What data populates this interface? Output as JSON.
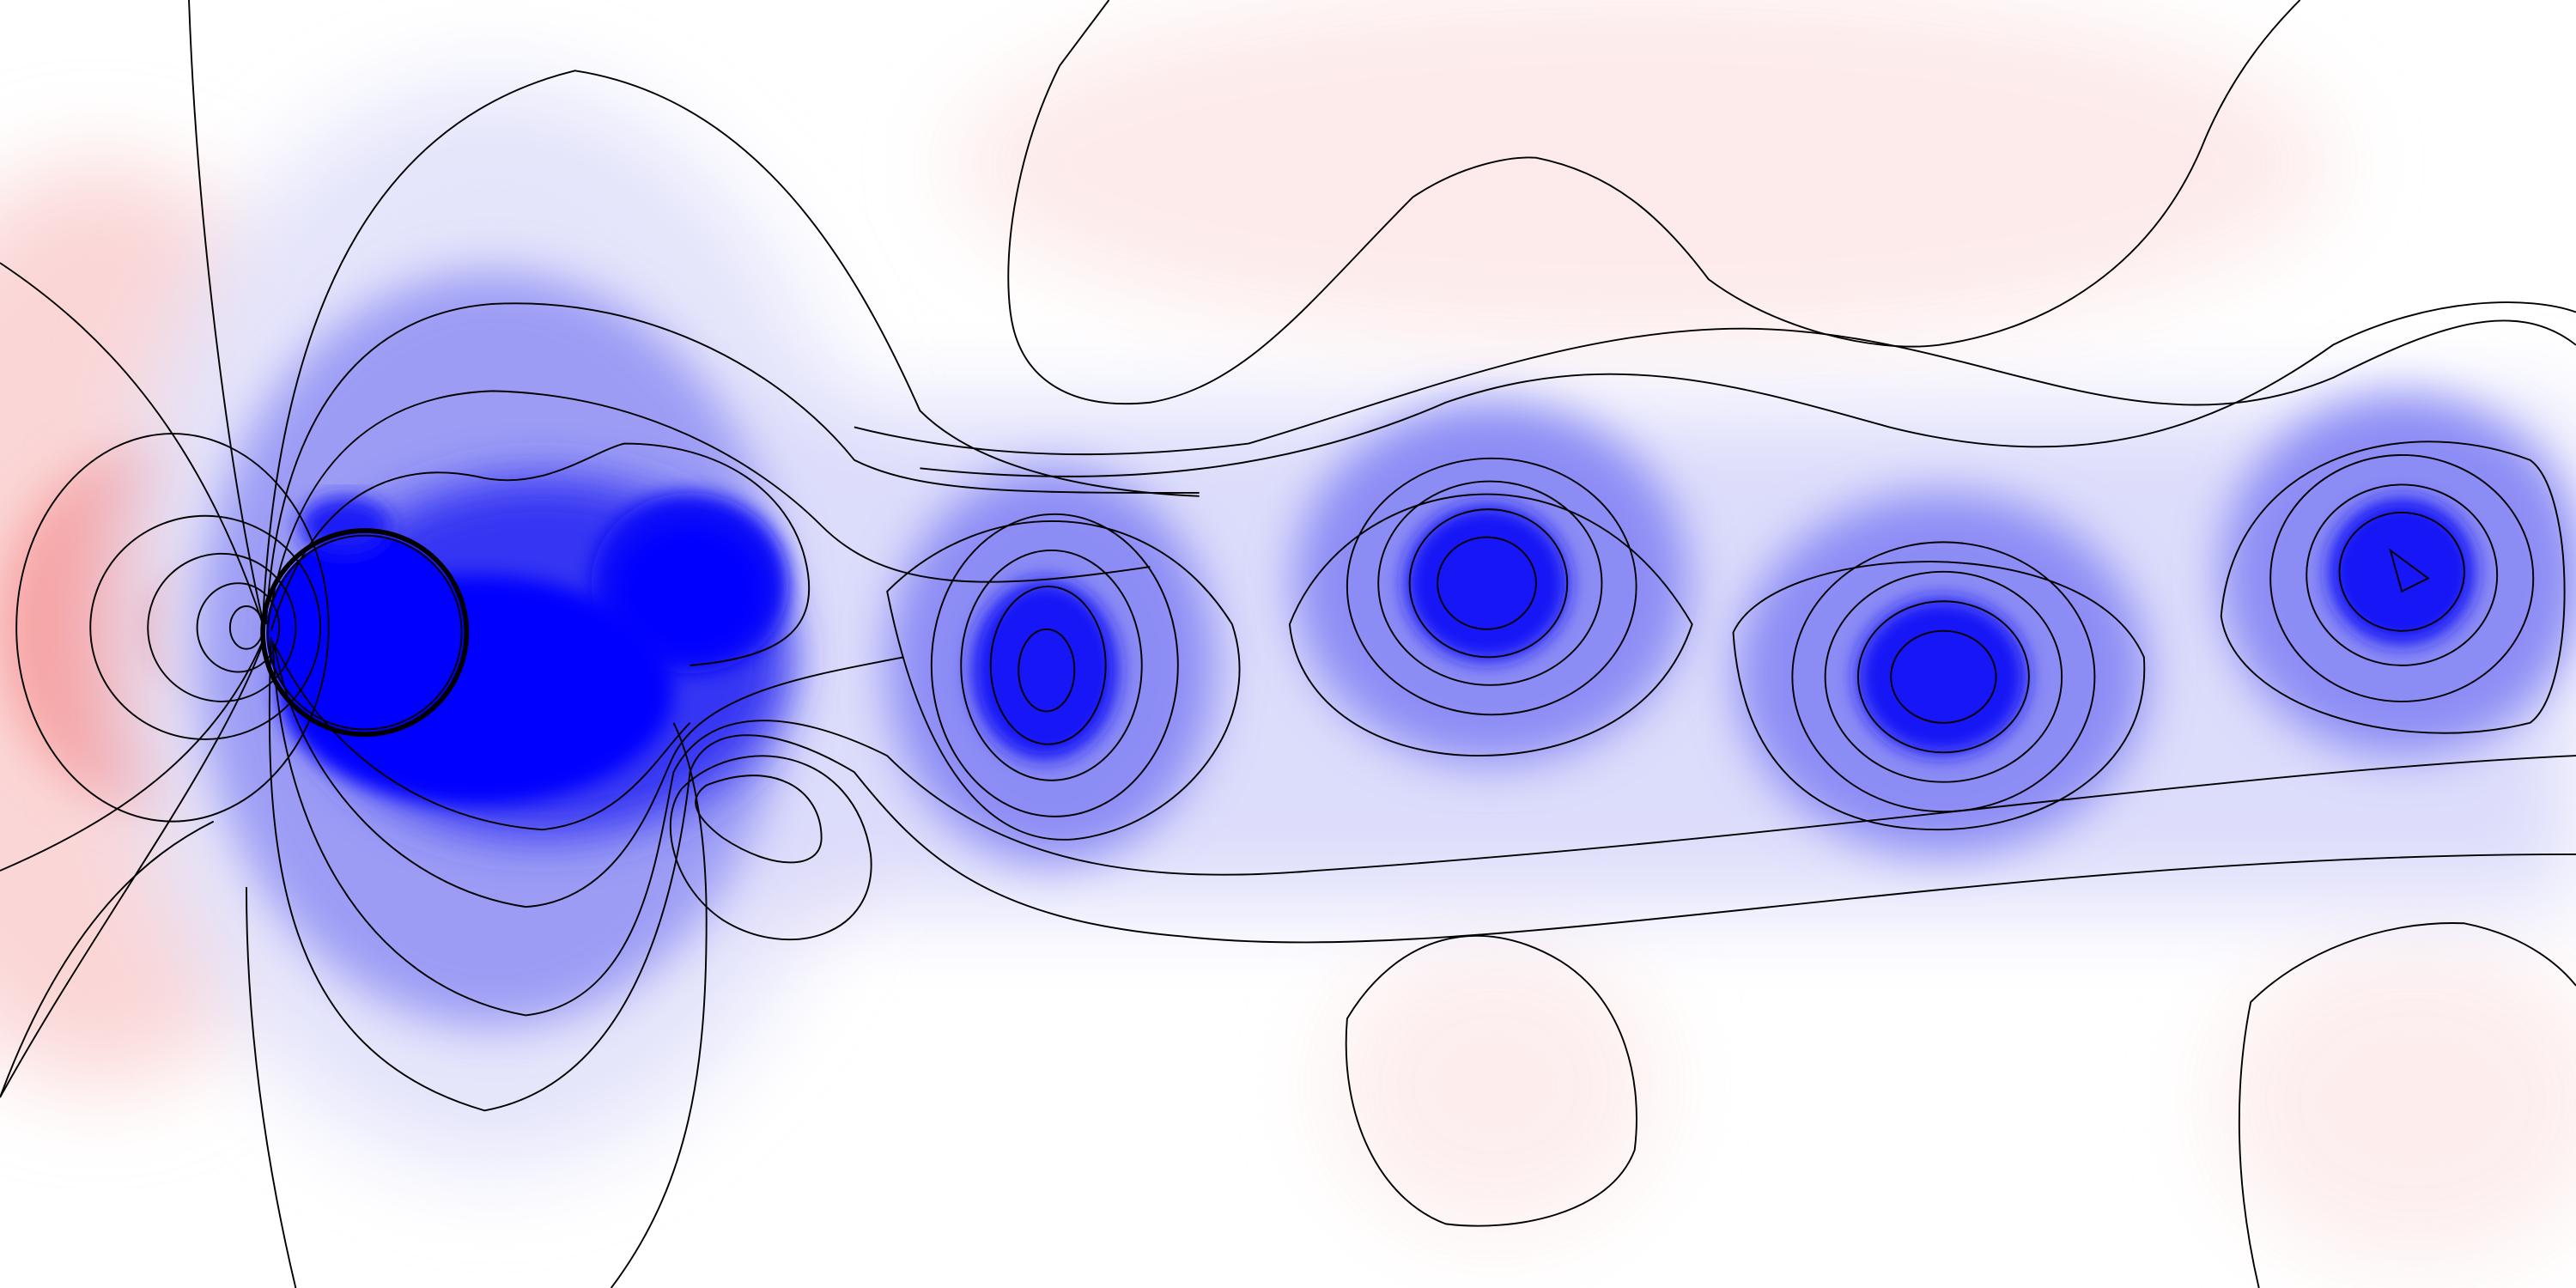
{
  "figure": {
    "kind": "pressure field contour plot of flow past a circular cylinder (vortex street)",
    "colors": {
      "high": "#ff0000",
      "mid": "#ffffff",
      "low": "#0000ff",
      "contour": "#000000"
    },
    "wake": {
      "vortex_count": 5,
      "region_count_high": 5
    }
  }
}
